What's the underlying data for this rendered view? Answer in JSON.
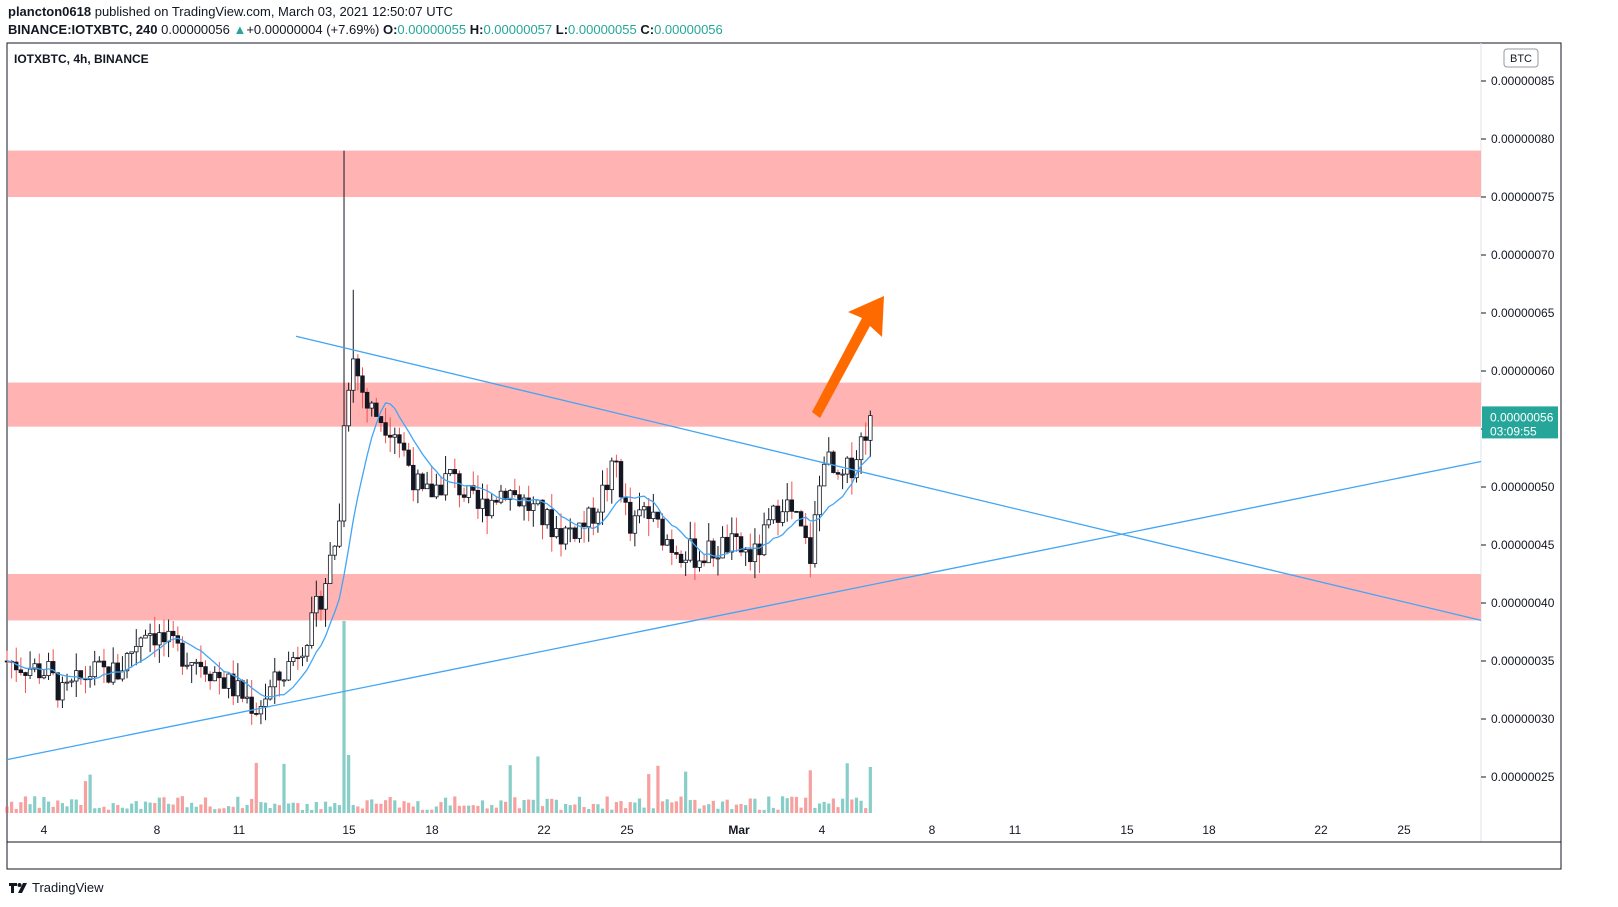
{
  "header": {
    "publisher": "plancton0618",
    "published_text": "published on TradingView.com, March 03, 2021 12:50:07 UTC",
    "symbol": "BINANCE:IOTXBTC, 240",
    "last": "0.00000056",
    "change": "+0.00000004 (+7.69%)",
    "o_label": "O:",
    "o": "0.00000055",
    "h_label": "H:",
    "h": "0.00000057",
    "l_label": "L:",
    "l": "0.00000055",
    "c_label": "C:",
    "c": "0.00000056"
  },
  "legend_title": "IOTXBTC, 4h, BINANCE",
  "currency_badge": "BTC",
  "price_tag": {
    "price": "0.00000056",
    "countdown": "03:09:55"
  },
  "footer": {
    "brand": "TradingView"
  },
  "colors": {
    "up": "#26a69a",
    "down": "#ef5350",
    "zone": "#ffb3b3",
    "line": "#42a5f5",
    "arrow": "#ff6a00",
    "tag": "#26a69a"
  },
  "chart_data": {
    "type": "candlestick",
    "y_ticks": [
      "0.00000025",
      "0.00000030",
      "0.00000035",
      "0.00000040",
      "0.00000045",
      "0.00000050",
      "0.00000055",
      "0.00000060",
      "0.00000065",
      "0.00000070",
      "0.00000075",
      "0.00000080",
      "0.00000085"
    ],
    "x_ticks": [
      "4",
      "8",
      "11",
      "15",
      "18",
      "22",
      "25",
      "Mar",
      "4",
      "8",
      "11",
      "15",
      "18",
      "22",
      "25"
    ],
    "resistance_zones": [
      [
        7.5e-07,
        7.9e-07
      ],
      [
        5.52e-07,
        5.9e-07
      ],
      [
        3.85e-07,
        4.25e-07
      ]
    ],
    "trendlines": [
      {
        "from": [
          "Feb 12",
          "0.00000063"
        ],
        "to": [
          "Mar 28",
          "0.000000385"
        ]
      },
      {
        "from": [
          "Feb 1",
          "0.000000265"
        ],
        "to": [
          "Mar 28",
          "0.000000522"
        ]
      }
    ],
    "projection_arrow": {
      "from": [
        "Mar 3",
        "0.000000565"
      ],
      "to": [
        "Mar 6",
        "0.000000668"
      ]
    },
    "candles_summary": "4h candles Feb 1 – Mar 3, 2021; spike high 0.00000079 on Feb 12"
  }
}
